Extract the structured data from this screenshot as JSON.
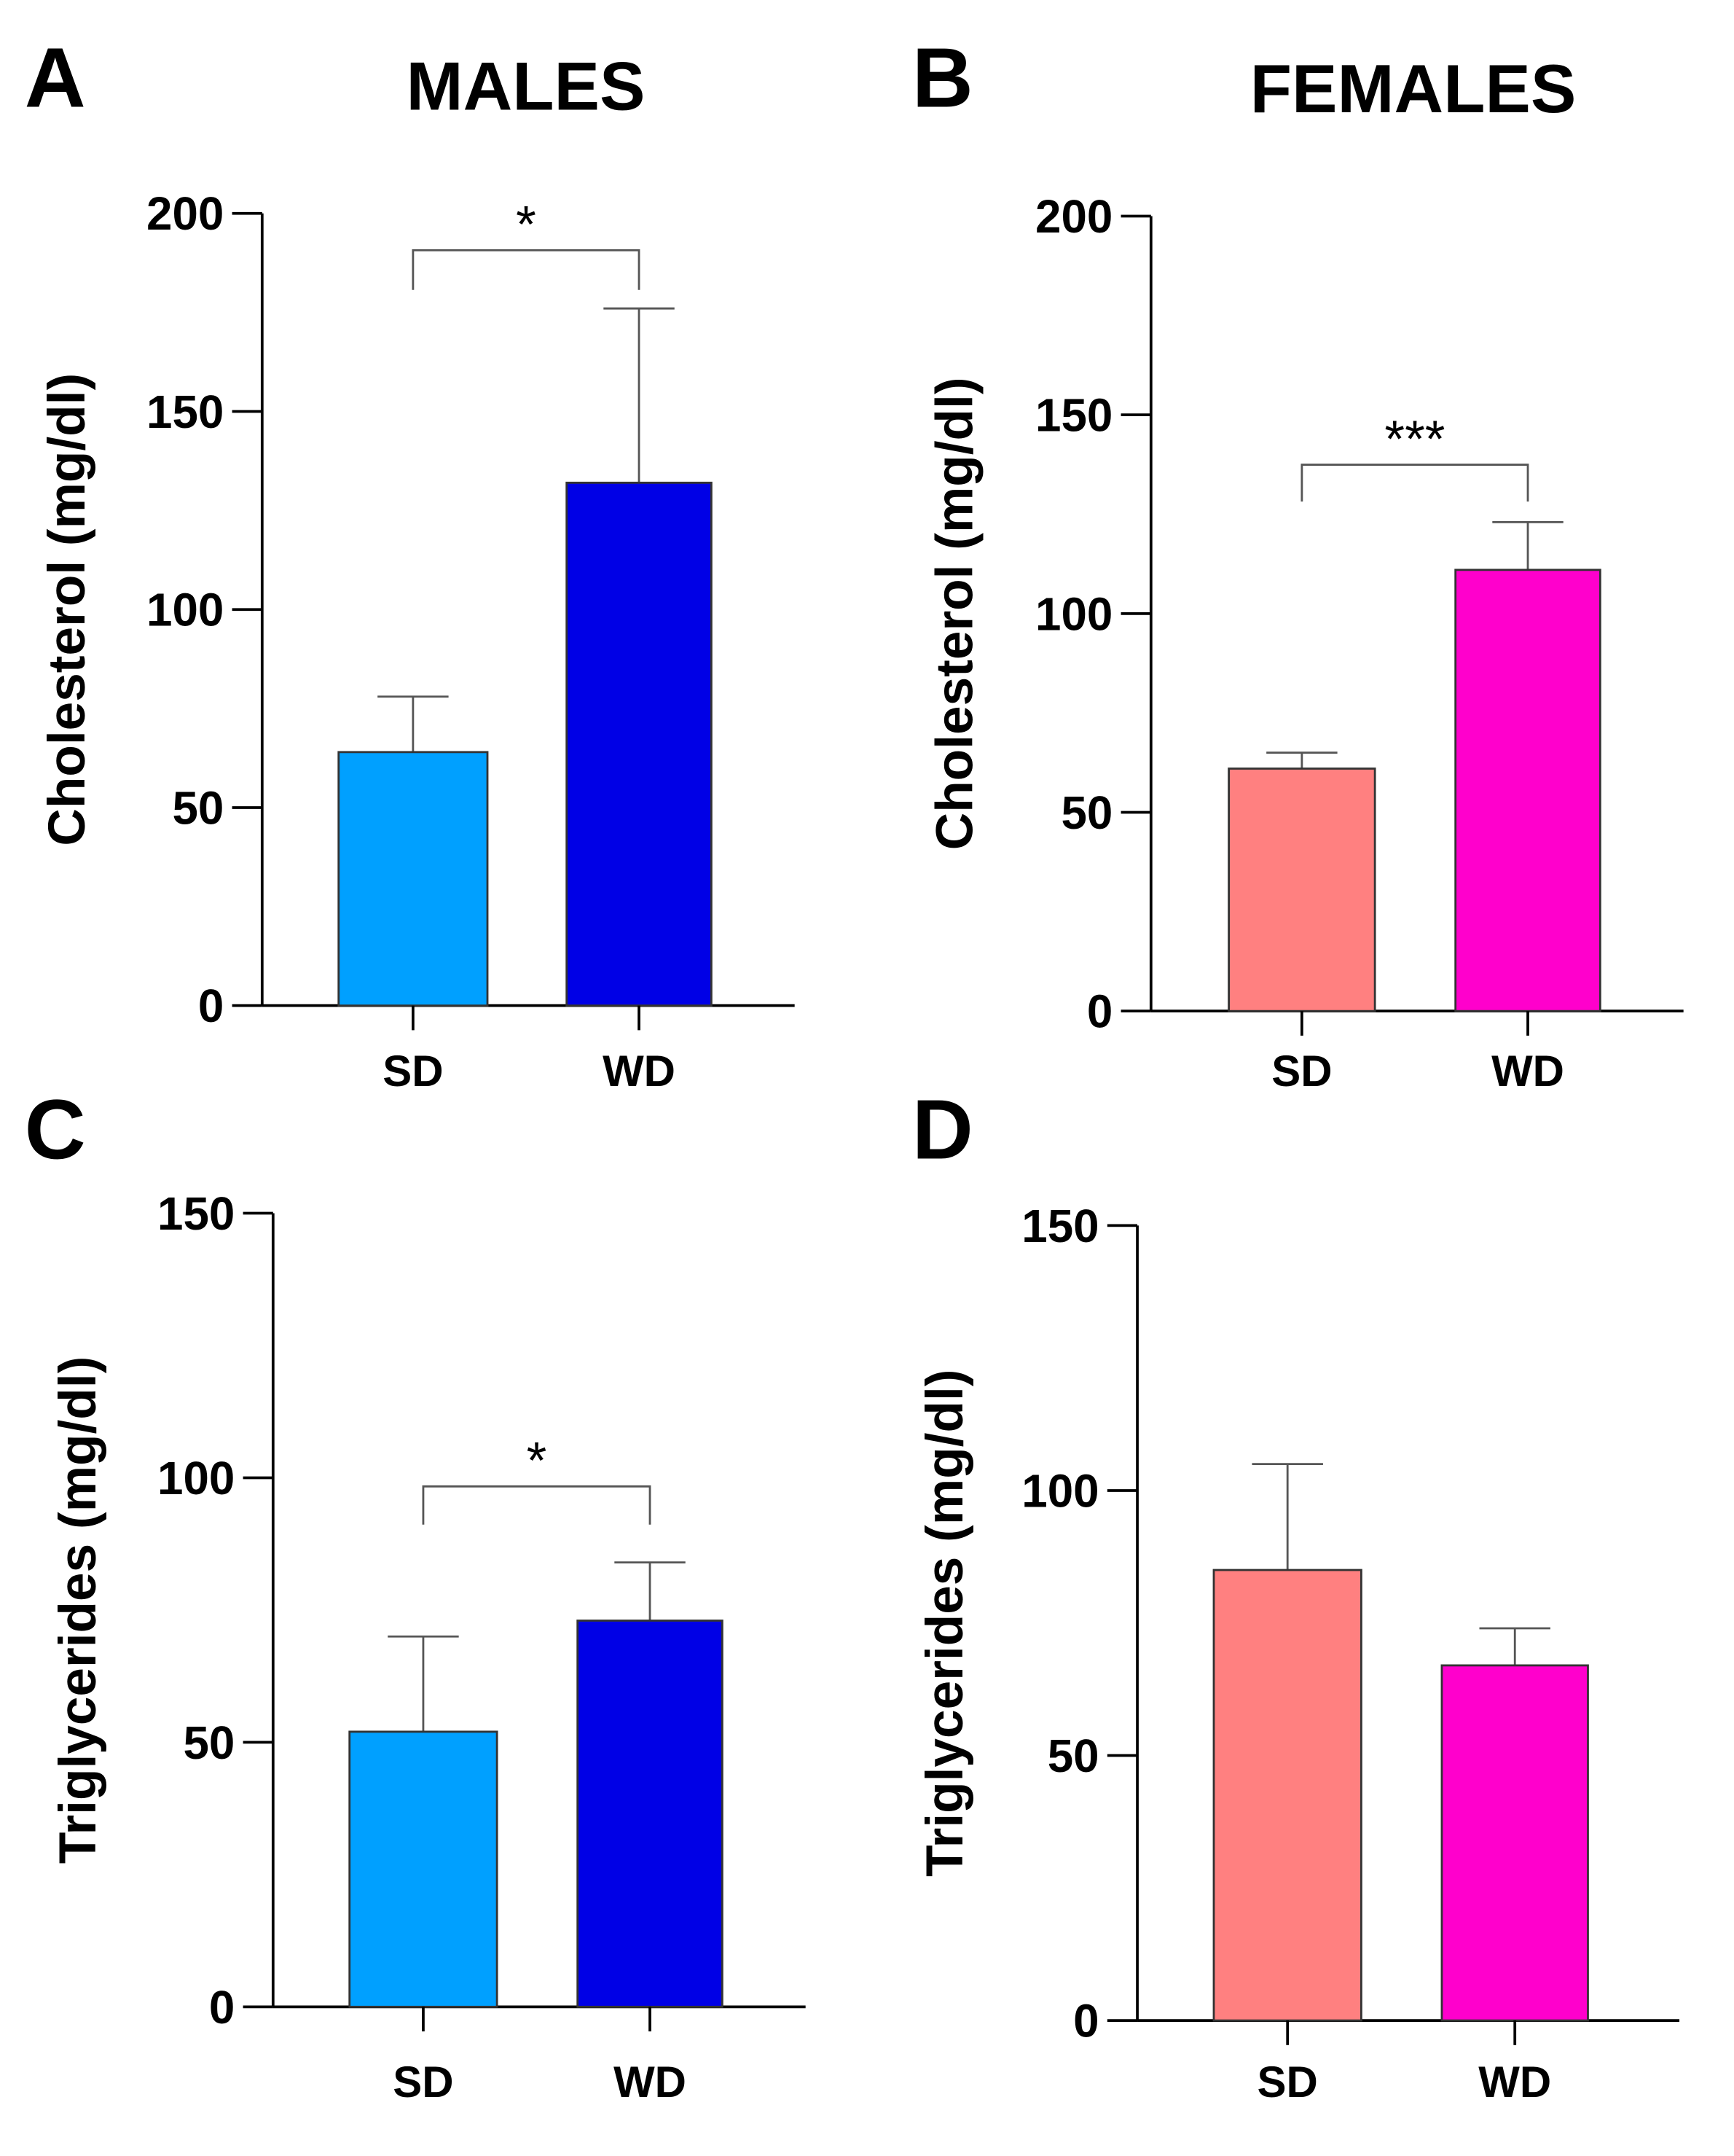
{
  "header": {
    "males_title": "MALES",
    "females_title": "FEMALES"
  },
  "chart_data": [
    {
      "panel": "A",
      "type": "bar",
      "title": "MALES",
      "ylabel": "Cholesterol (mg/dl)",
      "ylim": [
        0,
        200
      ],
      "yticks": [
        0,
        50,
        100,
        150,
        200
      ],
      "categories": [
        "SD",
        "WD"
      ],
      "values": [
        64,
        132
      ],
      "errors_upper": [
        78,
        176
      ],
      "colors": [
        "#00a0ff",
        "#0000e6"
      ],
      "significance": {
        "label": "*",
        "between": [
          "SD",
          "WD"
        ]
      }
    },
    {
      "panel": "B",
      "type": "bar",
      "title": "FEMALES",
      "ylabel": "Cholesterol (mg/dl)",
      "ylim": [
        0,
        200
      ],
      "yticks": [
        0,
        50,
        100,
        150,
        200
      ],
      "categories": [
        "SD",
        "WD"
      ],
      "values": [
        61,
        111
      ],
      "errors_upper": [
        65,
        123
      ],
      "colors": [
        "#ff8080",
        "#ff00cc"
      ],
      "significance": {
        "label": "***",
        "between": [
          "SD",
          "WD"
        ]
      }
    },
    {
      "panel": "C",
      "type": "bar",
      "ylabel": "Triglycerides (mg/dl)",
      "ylim": [
        0,
        150
      ],
      "yticks": [
        0,
        50,
        100,
        150
      ],
      "categories": [
        "SD",
        "WD"
      ],
      "values": [
        52,
        73
      ],
      "errors_upper": [
        70,
        84
      ],
      "colors": [
        "#00a0ff",
        "#0000e6"
      ],
      "significance": {
        "label": "*",
        "between": [
          "SD",
          "WD"
        ]
      }
    },
    {
      "panel": "D",
      "type": "bar",
      "ylabel": "Triglycerides (mg/dl)",
      "ylim": [
        0,
        150
      ],
      "yticks": [
        0,
        50,
        100,
        150
      ],
      "categories": [
        "SD",
        "WD"
      ],
      "values": [
        85,
        67
      ],
      "errors_upper": [
        105,
        74
      ],
      "colors": [
        "#ff8080",
        "#ff00cc"
      ],
      "significance": null
    }
  ]
}
